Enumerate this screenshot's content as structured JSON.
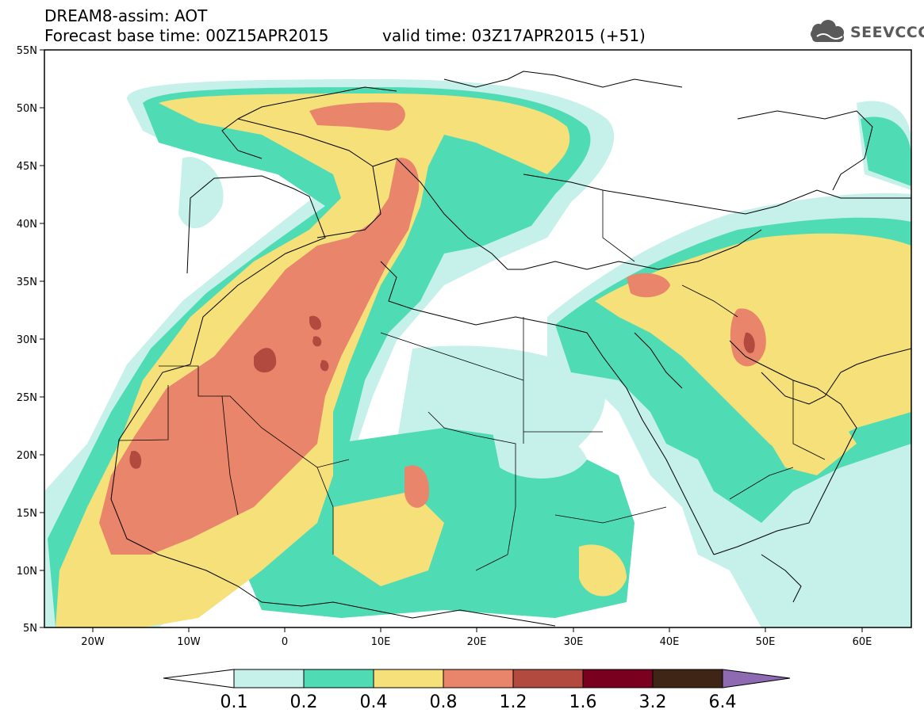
{
  "header": {
    "title": "DREAM8-assim: AOT",
    "base_time": "Forecast base time: 00Z15APR2015",
    "valid_time": "valid time: 03Z17APR2015 (+51)"
  },
  "logo": {
    "text": "SEEVCCC",
    "icon": "cloud-icon"
  },
  "map": {
    "lon_ticks": [
      "20W",
      "10W",
      "0",
      "10E",
      "20E",
      "30E",
      "40E",
      "50E",
      "60E"
    ],
    "lat_ticks": [
      "55N",
      "50N",
      "45N",
      "40N",
      "35N",
      "30N",
      "25N",
      "20N",
      "15N",
      "10N",
      "5N"
    ],
    "lon_range": [
      -25,
      65
    ],
    "lat_range": [
      5,
      55
    ]
  },
  "colorbar": {
    "labels": [
      "0.1",
      "0.2",
      "0.4",
      "0.8",
      "1.2",
      "1.6",
      "3.2",
      "6.4"
    ],
    "colors": [
      "#c6f0ea",
      "#4fdcb4",
      "#f5e07a",
      "#e8856a",
      "#b24a40",
      "#7a0020",
      "#3e2516",
      "#8e6ab3"
    ],
    "min_color": "#ffffff",
    "max_color": "#8e6ab3"
  }
}
